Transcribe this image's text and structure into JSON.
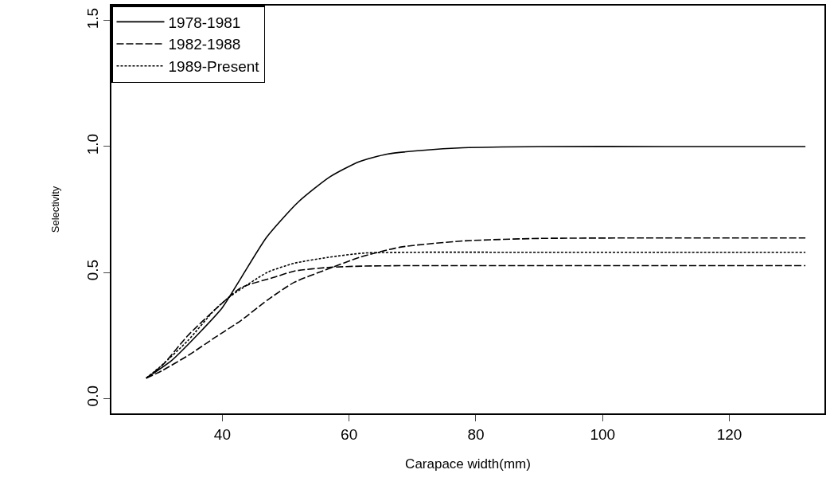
{
  "chart_data": {
    "type": "line",
    "xlabel": "Carapace width(mm)",
    "ylabel": "Selectivity",
    "xlim": [
      22.5,
      135
    ],
    "ylim": [
      -0.06,
      1.56
    ],
    "xticks": [
      40,
      60,
      80,
      100,
      120
    ],
    "yticks": [
      {
        "value": 0,
        "label": "0.0"
      },
      0.5,
      {
        "value": 1,
        "label": "1.0"
      },
      1.5
    ],
    "grid": false,
    "legend": "top left",
    "marker": "none",
    "series": [
      {
        "name": "1978-1981",
        "color": "#000000",
        "line_style": "solid",
        "x": [
          28,
          32,
          36,
          40,
          43,
          47,
          52,
          57,
          61.6,
          66,
          71.6,
          78,
          90,
          110,
          132
        ],
        "values": [
          0.08,
          0.15,
          0.25,
          0.36,
          0.48,
          0.64,
          0.78,
          0.88,
          0.94,
          0.97,
          0.985,
          0.995,
          1.0,
          1.0,
          1.0
        ]
      },
      {
        "name": "1982-1988",
        "color": "#000000",
        "line_style": "dashed",
        "x": [
          28,
          30.5,
          34.6,
          38.75,
          43,
          47.1,
          51.3,
          56.3,
          61.7,
          68,
          78,
          90,
          110,
          132
        ],
        "values": [
          0.08,
          0.11,
          0.17,
          0.24,
          0.31,
          0.39,
          0.46,
          0.51,
          0.56,
          0.6,
          0.625,
          0.635,
          0.637,
          0.637
        ]
      },
      {
        "color": "#000000",
        "line_style": "dashed",
        "x": [
          28,
          30.5,
          34.6,
          38.75,
          43,
          48.1,
          51.3,
          56.75,
          62,
          70,
          90,
          110,
          132
        ],
        "values": [
          0.08,
          0.13,
          0.25,
          0.35,
          0.44,
          0.48,
          0.505,
          0.52,
          0.525,
          0.527,
          0.527,
          0.527,
          0.527
        ]
      },
      {
        "name": "1989-Present",
        "color": "#000000",
        "line_style": "dotted",
        "x": [
          28,
          30.4,
          34.6,
          38.75,
          41,
          47.1,
          51.3,
          56.75,
          62.4,
          70,
          90,
          110,
          132
        ],
        "values": [
          0.08,
          0.13,
          0.23,
          0.35,
          0.4,
          0.5,
          0.536,
          0.56,
          0.577,
          0.58,
          0.58,
          0.58,
          0.58
        ]
      }
    ]
  }
}
